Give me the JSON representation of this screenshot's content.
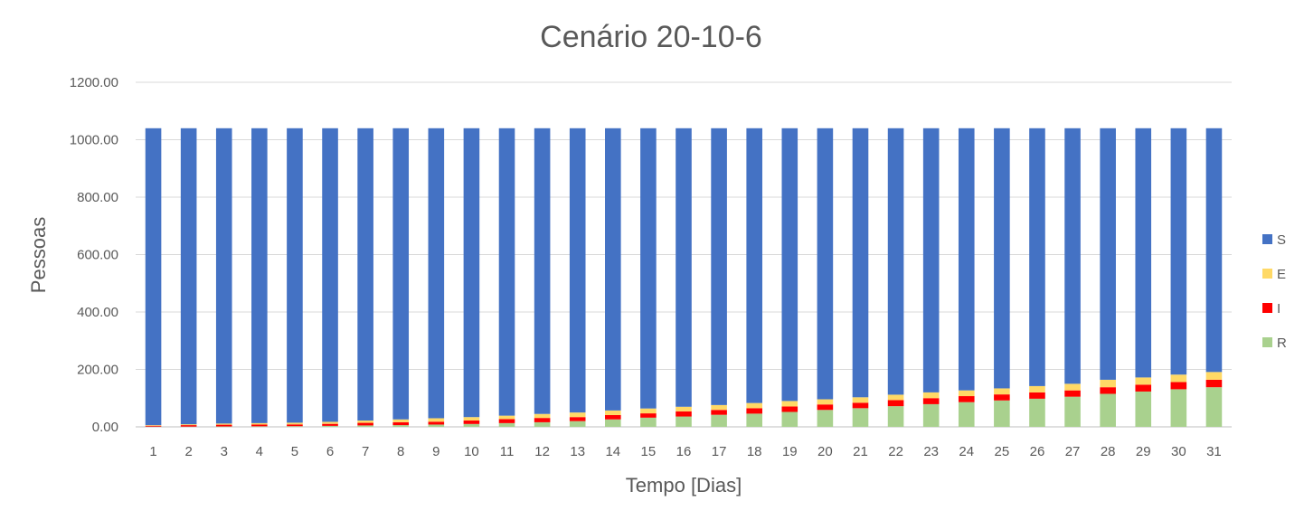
{
  "chart_data": {
    "type": "bar",
    "stacked": true,
    "title": "Cenário 20-10-6",
    "xlabel": "Tempo [Dias]",
    "ylabel": "Pessoas",
    "ylim": [
      0,
      1200
    ],
    "yticks": [
      "0.00",
      "200.00",
      "400.00",
      "600.00",
      "800.00",
      "1000.00",
      "1200.00"
    ],
    "grid": true,
    "legend_position": "right",
    "categories": [
      "1",
      "2",
      "3",
      "4",
      "5",
      "6",
      "7",
      "8",
      "9",
      "10",
      "11",
      "12",
      "13",
      "14",
      "15",
      "16",
      "17",
      "18",
      "19",
      "20",
      "21",
      "22",
      "23",
      "24",
      "25",
      "26",
      "27",
      "28",
      "29",
      "30",
      "31"
    ],
    "series": [
      {
        "name": "R",
        "color": "#A9D18E",
        "values": [
          1,
          1,
          1.5,
          2,
          2.5,
          3.5,
          5,
          6,
          8,
          10,
          13,
          16,
          20,
          26,
          32,
          36,
          42,
          46,
          52,
          59,
          65,
          72,
          79,
          86,
          92,
          98,
          105,
          115,
          123,
          131,
          138
        ]
      },
      {
        "name": "I",
        "color": "#FF0000",
        "values": [
          3,
          5,
          6,
          6,
          6,
          7,
          9,
          10,
          10,
          12,
          14,
          15,
          14,
          15,
          15,
          18,
          17,
          19,
          19,
          19,
          19,
          21,
          21,
          21,
          21,
          22,
          22,
          23,
          24,
          25,
          26
        ]
      },
      {
        "name": "E",
        "color": "#FFD966",
        "values": [
          2,
          3,
          4,
          5,
          6,
          7,
          8,
          10,
          12,
          12,
          12,
          14,
          16,
          16,
          17,
          16,
          17,
          18,
          19,
          18,
          19,
          19,
          20,
          20,
          21,
          22,
          23,
          26,
          25,
          26,
          27
        ]
      },
      {
        "name": "S",
        "color": "#4472C4",
        "values": [
          1034,
          1031,
          1028.5,
          1027,
          1025.5,
          1022.5,
          1018,
          1014,
          1010,
          1006,
          1001,
          995,
          990,
          983,
          976,
          970,
          964,
          957,
          950,
          944,
          937,
          928,
          920,
          913,
          906,
          898,
          890,
          876,
          868,
          858,
          849
        ]
      }
    ]
  }
}
